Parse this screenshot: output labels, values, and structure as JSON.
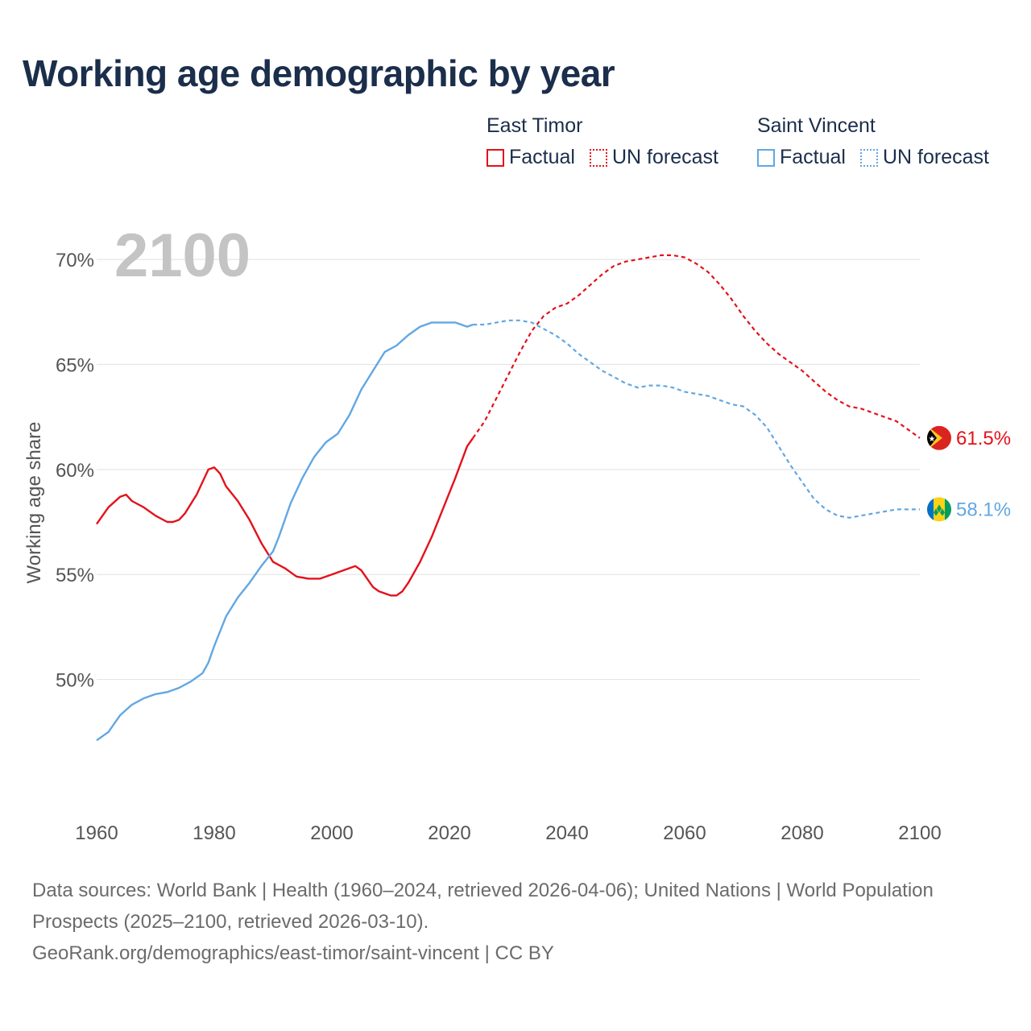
{
  "title": "Working age demographic by year",
  "legend": {
    "groups": [
      {
        "name": "East Timor",
        "color": "#e3121b",
        "factual_label": "Factual",
        "forecast_label": "UN forecast"
      },
      {
        "name": "Saint Vincent",
        "color": "#62a7e3",
        "factual_label": "Factual",
        "forecast_label": "UN forecast"
      }
    ]
  },
  "year_watermark": "2100",
  "chart_data": {
    "type": "line",
    "title": "Working age demographic by year",
    "ylabel": "Working age share",
    "xlabel": "",
    "xlim": [
      1960,
      2100
    ],
    "ylim": [
      44,
      72
    ],
    "x_ticks": [
      1960,
      1980,
      2000,
      2020,
      2040,
      2060,
      2080,
      2100
    ],
    "x_tick_labels": [
      "1960",
      "1980",
      "2000",
      "2020",
      "2040",
      "2060",
      "2080",
      "2100"
    ],
    "y_ticks": [
      50,
      55,
      60,
      65,
      70
    ],
    "y_tick_labels": [
      "50%",
      "55%",
      "60%",
      "65%",
      "70%"
    ],
    "grid": true,
    "factual_end_year": 2024,
    "series": [
      {
        "name": "East Timor",
        "color": "#e3121b",
        "end_label": "61.5%",
        "points": [
          [
            1960,
            57.4
          ],
          [
            1962,
            58.2
          ],
          [
            1964,
            58.7
          ],
          [
            1965,
            58.8
          ],
          [
            1966,
            58.5
          ],
          [
            1968,
            58.2
          ],
          [
            1970,
            57.8
          ],
          [
            1972,
            57.5
          ],
          [
            1973,
            57.5
          ],
          [
            1974,
            57.6
          ],
          [
            1975,
            57.9
          ],
          [
            1977,
            58.8
          ],
          [
            1979,
            60.0
          ],
          [
            1980,
            60.1
          ],
          [
            1981,
            59.8
          ],
          [
            1982,
            59.2
          ],
          [
            1984,
            58.5
          ],
          [
            1986,
            57.6
          ],
          [
            1988,
            56.5
          ],
          [
            1990,
            55.6
          ],
          [
            1992,
            55.3
          ],
          [
            1994,
            54.9
          ],
          [
            1996,
            54.8
          ],
          [
            1998,
            54.8
          ],
          [
            2000,
            55.0
          ],
          [
            2002,
            55.2
          ],
          [
            2004,
            55.4
          ],
          [
            2005,
            55.2
          ],
          [
            2006,
            54.8
          ],
          [
            2007,
            54.4
          ],
          [
            2008,
            54.2
          ],
          [
            2010,
            54.0
          ],
          [
            2011,
            54.0
          ],
          [
            2012,
            54.2
          ],
          [
            2013,
            54.6
          ],
          [
            2015,
            55.6
          ],
          [
            2017,
            56.8
          ],
          [
            2019,
            58.2
          ],
          [
            2021,
            59.6
          ],
          [
            2023,
            61.1
          ],
          [
            2024,
            61.5
          ],
          [
            2026,
            62.3
          ],
          [
            2028,
            63.4
          ],
          [
            2030,
            64.5
          ],
          [
            2032,
            65.6
          ],
          [
            2034,
            66.6
          ],
          [
            2036,
            67.3
          ],
          [
            2038,
            67.7
          ],
          [
            2040,
            67.9
          ],
          [
            2042,
            68.3
          ],
          [
            2044,
            68.8
          ],
          [
            2046,
            69.3
          ],
          [
            2048,
            69.7
          ],
          [
            2050,
            69.9
          ],
          [
            2052,
            70.0
          ],
          [
            2054,
            70.1
          ],
          [
            2056,
            70.2
          ],
          [
            2058,
            70.2
          ],
          [
            2060,
            70.1
          ],
          [
            2062,
            69.8
          ],
          [
            2064,
            69.4
          ],
          [
            2066,
            68.8
          ],
          [
            2068,
            68.1
          ],
          [
            2070,
            67.3
          ],
          [
            2072,
            66.6
          ],
          [
            2074,
            66.0
          ],
          [
            2076,
            65.5
          ],
          [
            2078,
            65.1
          ],
          [
            2080,
            64.7
          ],
          [
            2082,
            64.2
          ],
          [
            2084,
            63.7
          ],
          [
            2086,
            63.3
          ],
          [
            2088,
            63.0
          ],
          [
            2090,
            62.9
          ],
          [
            2092,
            62.7
          ],
          [
            2094,
            62.5
          ],
          [
            2096,
            62.3
          ],
          [
            2098,
            61.9
          ],
          [
            2100,
            61.5
          ]
        ]
      },
      {
        "name": "Saint Vincent",
        "color": "#62a7e3",
        "end_label": "58.1%",
        "points": [
          [
            1960,
            47.1
          ],
          [
            1962,
            47.5
          ],
          [
            1964,
            48.3
          ],
          [
            1966,
            48.8
          ],
          [
            1968,
            49.1
          ],
          [
            1970,
            49.3
          ],
          [
            1972,
            49.4
          ],
          [
            1974,
            49.6
          ],
          [
            1976,
            49.9
          ],
          [
            1978,
            50.3
          ],
          [
            1979,
            50.8
          ],
          [
            1980,
            51.6
          ],
          [
            1982,
            53.0
          ],
          [
            1984,
            53.9
          ],
          [
            1986,
            54.6
          ],
          [
            1988,
            55.4
          ],
          [
            1990,
            56.1
          ],
          [
            1991,
            56.8
          ],
          [
            1993,
            58.4
          ],
          [
            1995,
            59.6
          ],
          [
            1997,
            60.6
          ],
          [
            1999,
            61.3
          ],
          [
            2001,
            61.7
          ],
          [
            2003,
            62.6
          ],
          [
            2005,
            63.8
          ],
          [
            2007,
            64.7
          ],
          [
            2009,
            65.6
          ],
          [
            2011,
            65.9
          ],
          [
            2013,
            66.4
          ],
          [
            2015,
            66.8
          ],
          [
            2017,
            67.0
          ],
          [
            2019,
            67.0
          ],
          [
            2021,
            67.0
          ],
          [
            2023,
            66.8
          ],
          [
            2024,
            66.9
          ],
          [
            2026,
            66.9
          ],
          [
            2028,
            67.0
          ],
          [
            2030,
            67.1
          ],
          [
            2032,
            67.1
          ],
          [
            2034,
            67.0
          ],
          [
            2036,
            66.7
          ],
          [
            2038,
            66.4
          ],
          [
            2040,
            66.0
          ],
          [
            2042,
            65.5
          ],
          [
            2044,
            65.1
          ],
          [
            2046,
            64.7
          ],
          [
            2048,
            64.4
          ],
          [
            2050,
            64.1
          ],
          [
            2052,
            63.9
          ],
          [
            2054,
            64.0
          ],
          [
            2056,
            64.0
          ],
          [
            2058,
            63.9
          ],
          [
            2060,
            63.7
          ],
          [
            2062,
            63.6
          ],
          [
            2064,
            63.5
          ],
          [
            2066,
            63.3
          ],
          [
            2068,
            63.1
          ],
          [
            2070,
            63.0
          ],
          [
            2072,
            62.6
          ],
          [
            2074,
            62.0
          ],
          [
            2076,
            61.1
          ],
          [
            2078,
            60.2
          ],
          [
            2080,
            59.4
          ],
          [
            2082,
            58.6
          ],
          [
            2084,
            58.1
          ],
          [
            2086,
            57.8
          ],
          [
            2088,
            57.7
          ],
          [
            2090,
            57.8
          ],
          [
            2092,
            57.9
          ],
          [
            2094,
            58.0
          ],
          [
            2096,
            58.1
          ],
          [
            2098,
            58.1
          ],
          [
            2100,
            58.1
          ]
        ]
      }
    ]
  },
  "footer": {
    "line1": "Data sources: World Bank | Health (1960–2024, retrieved 2026-04-06); United Nations | World Population Prospects (2025–2100, retrieved 2026-03-10).",
    "line2": "GeoRank.org/demographics/east-timor/saint-vincent | CC BY"
  }
}
